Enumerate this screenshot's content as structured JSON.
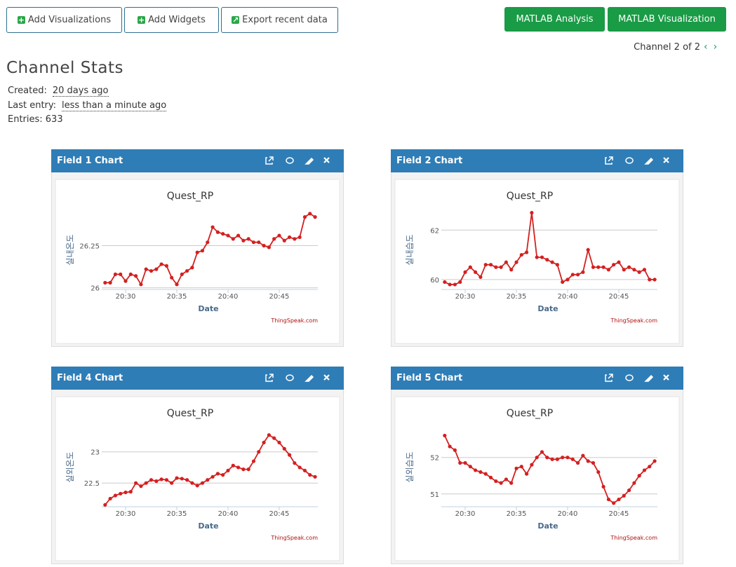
{
  "toolbar": {
    "buttons": [
      "Add Visualizations",
      "Add Widgets",
      "Export recent data"
    ],
    "matlab_buttons": [
      "MATLAB Analysis",
      "MATLAB Visualization"
    ]
  },
  "pager": "Channel 2 of 2",
  "stats": {
    "title": "Channel Stats",
    "created_label": "Created:",
    "created": "20 days ago",
    "last_entry_label": "Last entry:",
    "last_entry": "less than a minute ago",
    "entries": "Entries: 633"
  },
  "panels": [
    {
      "header": "Field 1 Chart",
      "chart_data": {
        "type": "line",
        "title": "Quest_RP",
        "xlabel": "Date",
        "ylabel": "실내온도",
        "credit": "ThingSpeak.com",
        "color": "#d42020",
        "x": [
          28,
          28.5,
          29,
          29.5,
          30,
          30.5,
          31,
          31.5,
          32,
          32.5,
          33,
          33.5,
          34,
          34.5,
          35,
          35.5,
          36,
          36.5,
          37,
          37.5,
          38,
          38.5,
          39,
          39.5,
          40,
          40.5,
          41,
          41.5,
          42,
          42.5,
          43,
          43.5,
          44,
          44.5,
          45,
          45.5,
          46,
          46.5,
          47,
          47.5,
          48,
          48.5
        ],
        "values": [
          26.03,
          26.03,
          26.08,
          26.08,
          26.04,
          26.08,
          26.07,
          26.02,
          26.11,
          26.1,
          26.11,
          26.14,
          26.13,
          26.06,
          26.02,
          26.08,
          26.1,
          26.12,
          26.21,
          26.22,
          26.27,
          26.36,
          26.33,
          26.32,
          26.31,
          26.29,
          26.31,
          26.28,
          26.29,
          26.27,
          26.27,
          26.25,
          26.24,
          26.29,
          26.31,
          26.28,
          26.3,
          26.29,
          26.3,
          26.42,
          26.44,
          26.42
        ],
        "xlim": [
          27.67,
          48.77
        ],
        "xticks": [
          {
            "value": 30,
            "label": "20:30"
          },
          {
            "value": 35,
            "label": "20:35"
          },
          {
            "value": 40,
            "label": "20:40"
          },
          {
            "value": 45,
            "label": "20:45"
          }
        ],
        "ylim": [
          25.99,
          26.46
        ],
        "yticks": [
          26,
          26.25
        ],
        "grid": true
      }
    },
    {
      "header": "Field 2 Chart",
      "chart_data": {
        "type": "line",
        "title": "Quest_RP",
        "xlabel": "Date",
        "ylabel": "실내습도",
        "credit": "ThingSpeak.com",
        "color": "#d42020",
        "x": [
          28,
          28.5,
          29,
          29.5,
          30,
          30.5,
          31,
          31.5,
          32,
          32.5,
          33,
          33.5,
          34,
          34.5,
          35,
          35.5,
          36,
          36.5,
          37,
          37.5,
          38,
          38.5,
          39,
          39.5,
          40,
          40.5,
          41,
          41.5,
          42,
          42.5,
          43,
          43.5,
          44,
          44.5,
          45,
          45.5,
          46,
          46.5,
          47,
          47.5,
          48,
          48.5
        ],
        "values": [
          59.9,
          59.8,
          59.8,
          59.9,
          60.3,
          60.5,
          60.3,
          60.1,
          60.6,
          60.6,
          60.5,
          60.5,
          60.7,
          60.4,
          60.7,
          61.0,
          61.1,
          62.7,
          60.9,
          60.9,
          60.8,
          60.7,
          60.6,
          59.9,
          60.0,
          60.2,
          60.2,
          60.3,
          61.2,
          60.5,
          60.5,
          60.5,
          60.4,
          60.6,
          60.7,
          60.4,
          60.5,
          60.4,
          60.3,
          60.4,
          60.0,
          60.0
        ],
        "xlim": [
          27.67,
          48.77
        ],
        "xticks": [
          {
            "value": 30,
            "label": "20:30"
          },
          {
            "value": 35,
            "label": "20:35"
          },
          {
            "value": 40,
            "label": "20:40"
          },
          {
            "value": 45,
            "label": "20:45"
          }
        ],
        "ylim": [
          59.6,
          62.8
        ],
        "yticks": [
          60,
          62
        ],
        "grid": true
      }
    },
    {
      "header": "Field 4 Chart",
      "chart_data": {
        "type": "line",
        "title": "Quest_RP",
        "xlabel": "Date",
        "ylabel": "실외온도",
        "credit": "ThingSpeak.com",
        "color": "#d42020",
        "x": [
          28,
          28.5,
          29,
          29.5,
          30,
          30.5,
          31,
          31.5,
          32,
          32.5,
          33,
          33.5,
          34,
          34.5,
          35,
          35.5,
          36,
          36.5,
          37,
          37.5,
          38,
          38.5,
          39,
          39.5,
          40,
          40.5,
          41,
          41.5,
          42,
          42.5,
          43,
          43.5,
          44,
          44.5,
          45,
          45.5,
          46,
          46.5,
          47,
          47.5,
          48,
          48.5
        ],
        "values": [
          22.15,
          22.25,
          22.3,
          22.33,
          22.35,
          22.36,
          22.5,
          22.45,
          22.5,
          22.55,
          22.53,
          22.56,
          22.55,
          22.5,
          22.58,
          22.57,
          22.55,
          22.5,
          22.46,
          22.5,
          22.55,
          22.6,
          22.65,
          22.63,
          22.7,
          22.78,
          22.75,
          22.72,
          22.72,
          22.85,
          23.0,
          23.15,
          23.27,
          23.22,
          23.15,
          23.05,
          22.95,
          22.82,
          22.75,
          22.7,
          22.63,
          22.6
        ],
        "xlim": [
          27.67,
          48.77
        ],
        "xticks": [
          {
            "value": 30,
            "label": "20:30"
          },
          {
            "value": 35,
            "label": "20:35"
          },
          {
            "value": 40,
            "label": "20:40"
          },
          {
            "value": 45,
            "label": "20:45"
          }
        ],
        "ylim": [
          22.12,
          23.39
        ],
        "yticks": [
          22.5,
          23
        ],
        "grid": true
      }
    },
    {
      "header": "Field 5 Chart",
      "chart_data": {
        "type": "line",
        "title": "Quest_RP",
        "xlabel": "Date",
        "ylabel": "실외습도",
        "credit": "ThingSpeak.com",
        "color": "#d42020",
        "x": [
          28,
          28.5,
          29,
          29.5,
          30,
          30.5,
          31,
          31.5,
          32,
          32.5,
          33,
          33.5,
          34,
          34.5,
          35,
          35.5,
          36,
          36.5,
          37,
          37.5,
          38,
          38.5,
          39,
          39.5,
          40,
          40.5,
          41,
          41.5,
          42,
          42.5,
          43,
          43.5,
          44,
          44.5,
          45,
          45.5,
          46,
          46.5,
          47,
          47.5,
          48,
          48.5
        ],
        "values": [
          52.6,
          52.3,
          52.2,
          51.85,
          51.85,
          51.75,
          51.65,
          51.6,
          51.55,
          51.45,
          51.35,
          51.3,
          51.4,
          51.3,
          51.7,
          51.75,
          51.55,
          51.8,
          52.0,
          52.15,
          52.0,
          51.95,
          51.95,
          52.0,
          52.0,
          51.95,
          51.85,
          52.05,
          51.9,
          51.85,
          51.6,
          51.2,
          50.85,
          50.75,
          50.85,
          50.95,
          51.1,
          51.3,
          51.5,
          51.65,
          51.75,
          51.9
        ],
        "xlim": [
          27.67,
          48.77
        ],
        "xticks": [
          {
            "value": 30,
            "label": "20:30"
          },
          {
            "value": 35,
            "label": "20:35"
          },
          {
            "value": 40,
            "label": "20:40"
          },
          {
            "value": 45,
            "label": "20:45"
          }
        ],
        "ylim": [
          50.65,
          52.82
        ],
        "yticks": [
          51,
          52
        ],
        "grid": true
      }
    }
  ]
}
